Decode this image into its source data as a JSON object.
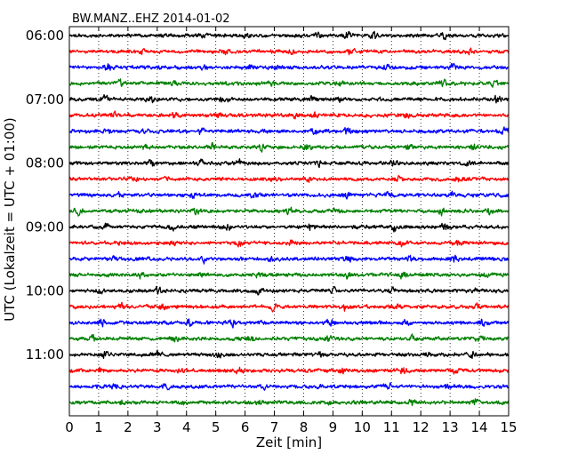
{
  "chart_data": {
    "type": "line",
    "title": "BW.MANZ..EHZ 2014-01-02",
    "xlabel": "Zeit  [min]",
    "ylabel": "UTC (Lokalzeit = UTC + 01:00)",
    "xlim": [
      0,
      15
    ],
    "x_ticks": [
      "0",
      "1",
      "2",
      "3",
      "4",
      "5",
      "6",
      "7",
      "8",
      "9",
      "10",
      "11",
      "12",
      "13",
      "14",
      "15"
    ],
    "y_ticks": [
      "06:00",
      "07:00",
      "08:00",
      "09:00",
      "10:00",
      "11:00"
    ],
    "grid": "vertical dotted at each minute",
    "trace_minutes": 15,
    "trace_start": "06:00",
    "trace_count": 24,
    "colors": [
      "#000000",
      "#ff0000",
      "#0000ff",
      "#008000"
    ],
    "amplitude_note": "small relative ground motion amplitude, noise-dominated",
    "series": [
      {
        "start": "06:00",
        "color": "#000000",
        "bursts": [
          [
            4.5,
            0.8
          ],
          [
            6.1,
            0.7
          ],
          [
            8.5,
            0.8
          ],
          [
            9.5,
            0.9
          ],
          [
            10.4,
            0.9
          ],
          [
            12.8,
            0.9
          ]
        ]
      },
      {
        "start": "06:15",
        "color": "#ff0000",
        "bursts": [
          [
            2.5,
            0.6
          ],
          [
            5.3,
            0.6
          ],
          [
            7.6,
            0.7
          ],
          [
            9.6,
            0.7
          ],
          [
            13.7,
            0.6
          ]
        ]
      },
      {
        "start": "06:30",
        "color": "#0000ff",
        "bursts": [
          [
            1.3,
            0.6
          ],
          [
            4.6,
            0.7
          ],
          [
            6.2,
            0.6
          ],
          [
            7.1,
            0.6
          ],
          [
            10.8,
            0.7
          ],
          [
            13.1,
            0.7
          ]
        ]
      },
      {
        "start": "06:45",
        "color": "#008000",
        "bursts": [
          [
            1.7,
            0.8
          ],
          [
            3.6,
            0.7
          ],
          [
            6.9,
            0.7
          ],
          [
            9.2,
            0.7
          ],
          [
            12.8,
            0.8
          ],
          [
            14.5,
            0.7
          ]
        ]
      },
      {
        "start": "07:00",
        "color": "#000000",
        "bursts": [
          [
            1.2,
            0.8
          ],
          [
            2.8,
            0.7
          ],
          [
            5.3,
            0.8
          ],
          [
            8.3,
            0.8
          ],
          [
            9.2,
            0.9
          ],
          [
            14.6,
            1.0
          ]
        ]
      },
      {
        "start": "07:15",
        "color": "#ff0000",
        "bursts": [
          [
            1.5,
            0.7
          ],
          [
            3.6,
            0.8
          ],
          [
            5.0,
            0.7
          ],
          [
            7.7,
            0.7
          ],
          [
            8.4,
            0.8
          ],
          [
            11.5,
            0.7
          ]
        ]
      },
      {
        "start": "07:30",
        "color": "#0000ff",
        "bursts": [
          [
            1.3,
            0.7
          ],
          [
            2.5,
            0.6
          ],
          [
            4.5,
            0.7
          ],
          [
            8.4,
            0.7
          ],
          [
            9.5,
            0.7
          ],
          [
            14.9,
            1.0
          ]
        ]
      },
      {
        "start": "07:45",
        "color": "#008000",
        "bursts": [
          [
            2.6,
            0.8
          ],
          [
            4.9,
            0.9
          ],
          [
            6.6,
            0.8
          ],
          [
            8.1,
            0.8
          ],
          [
            11.6,
            0.8
          ],
          [
            13.8,
            0.8
          ]
        ]
      },
      {
        "start": "08:00",
        "color": "#000000",
        "bursts": [
          [
            2.8,
            0.9
          ],
          [
            4.5,
            0.8
          ],
          [
            5.8,
            0.9
          ],
          [
            8.5,
            0.7
          ],
          [
            11.1,
            0.7
          ],
          [
            13.6,
            0.7
          ]
        ]
      },
      {
        "start": "08:15",
        "color": "#ff0000",
        "bursts": [
          [
            2.1,
            0.6
          ],
          [
            3.3,
            0.6
          ],
          [
            7.0,
            0.6
          ],
          [
            8.2,
            0.6
          ],
          [
            11.2,
            0.7
          ],
          [
            13.3,
            0.6
          ]
        ]
      },
      {
        "start": "08:30",
        "color": "#0000ff",
        "bursts": [
          [
            1.7,
            0.6
          ],
          [
            4.2,
            0.6
          ],
          [
            6.3,
            0.6
          ],
          [
            9.5,
            0.6
          ],
          [
            10.9,
            0.7
          ],
          [
            13.1,
            0.6
          ]
        ]
      },
      {
        "start": "08:45",
        "color": "#008000",
        "bursts": [
          [
            0.3,
            0.8
          ],
          [
            4.3,
            0.7
          ],
          [
            7.5,
            0.7
          ],
          [
            9.1,
            0.7
          ],
          [
            12.7,
            0.9
          ],
          [
            14.3,
            0.8
          ]
        ]
      },
      {
        "start": "09:00",
        "color": "#000000",
        "bursts": [
          [
            1.3,
            0.7
          ],
          [
            3.5,
            0.7
          ],
          [
            5.4,
            0.7
          ],
          [
            8.2,
            0.7
          ],
          [
            11.1,
            0.8
          ],
          [
            12.8,
            0.7
          ]
        ]
      },
      {
        "start": "09:15",
        "color": "#ff0000",
        "bursts": [
          [
            1.6,
            0.7
          ],
          [
            3.5,
            0.6
          ],
          [
            5.8,
            0.7
          ],
          [
            7.6,
            0.6
          ],
          [
            11.4,
            0.8
          ],
          [
            13.3,
            0.7
          ]
        ]
      },
      {
        "start": "09:30",
        "color": "#0000ff",
        "bursts": [
          [
            1.5,
            0.8
          ],
          [
            4.6,
            0.7
          ],
          [
            6.9,
            0.7
          ],
          [
            9.5,
            0.7
          ],
          [
            11.6,
            0.7
          ],
          [
            13.2,
            0.7
          ]
        ]
      },
      {
        "start": "09:45",
        "color": "#008000",
        "bursts": [
          [
            2.4,
            0.7
          ],
          [
            4.5,
            0.7
          ],
          [
            6.5,
            0.7
          ],
          [
            9.5,
            0.7
          ],
          [
            11.4,
            0.7
          ],
          [
            14.2,
            0.7
          ]
        ]
      },
      {
        "start": "10:00",
        "color": "#000000",
        "bursts": [
          [
            1.0,
            0.7
          ],
          [
            3.0,
            0.7
          ],
          [
            6.5,
            0.7
          ],
          [
            9.0,
            0.7
          ],
          [
            11.0,
            0.7
          ],
          [
            13.8,
            0.7
          ]
        ]
      },
      {
        "start": "10:15",
        "color": "#ff0000",
        "bursts": [
          [
            1.8,
            0.7
          ],
          [
            3.2,
            0.6
          ],
          [
            7.0,
            0.8
          ],
          [
            9.4,
            0.7
          ],
          [
            11.2,
            0.8
          ],
          [
            13.9,
            0.7
          ]
        ]
      },
      {
        "start": "10:30",
        "color": "#0000ff",
        "bursts": [
          [
            1.1,
            0.7
          ],
          [
            4.1,
            0.7
          ],
          [
            5.6,
            0.8
          ],
          [
            8.9,
            0.7
          ],
          [
            11.5,
            0.7
          ],
          [
            14.1,
            0.7
          ]
        ]
      },
      {
        "start": "10:45",
        "color": "#008000",
        "bursts": [
          [
            0.8,
            0.7
          ],
          [
            3.6,
            0.7
          ],
          [
            6.2,
            0.7
          ],
          [
            8.9,
            0.8
          ],
          [
            11.7,
            0.7
          ],
          [
            14.0,
            0.7
          ]
        ]
      },
      {
        "start": "11:00",
        "color": "#000000",
        "bursts": [
          [
            1.2,
            0.8
          ],
          [
            3.0,
            0.8
          ],
          [
            5.1,
            0.7
          ],
          [
            8.6,
            0.7
          ],
          [
            12.2,
            0.7
          ],
          [
            13.8,
            0.8
          ]
        ]
      },
      {
        "start": "11:15",
        "color": "#ff0000",
        "bursts": [
          [
            1.1,
            0.7
          ],
          [
            3.8,
            0.6
          ],
          [
            5.8,
            0.8
          ],
          [
            9.3,
            0.7
          ],
          [
            11.4,
            0.7
          ],
          [
            13.2,
            0.6
          ]
        ]
      },
      {
        "start": "11:30",
        "color": "#0000ff",
        "bursts": [
          [
            1.5,
            0.6
          ],
          [
            3.3,
            0.6
          ],
          [
            6.6,
            0.6
          ],
          [
            8.6,
            0.6
          ],
          [
            10.9,
            0.6
          ],
          [
            12.9,
            0.7
          ]
        ]
      },
      {
        "start": "11:45",
        "color": "#008000",
        "bursts": [
          [
            1.8,
            0.7
          ],
          [
            3.9,
            0.6
          ],
          [
            6.5,
            0.6
          ],
          [
            8.9,
            0.7
          ],
          [
            11.7,
            0.7
          ],
          [
            13.9,
            0.7
          ]
        ]
      }
    ]
  }
}
